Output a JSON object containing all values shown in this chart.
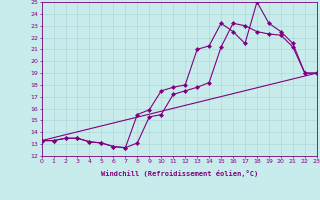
{
  "xlabel": "Windchill (Refroidissement éolien,°C)",
  "bg_color": "#c8ecec",
  "grid_color": "#b0d8d8",
  "line_color": "#800080",
  "xmin": 0,
  "xmax": 23,
  "ymin": 12,
  "ymax": 25,
  "line1_x": [
    0,
    1,
    2,
    3,
    4,
    5,
    6,
    7,
    8,
    9,
    10,
    11,
    12,
    13,
    14,
    15,
    16,
    17,
    18,
    19,
    20,
    21,
    22,
    23
  ],
  "line1_y": [
    13.3,
    13.3,
    13.5,
    13.5,
    13.2,
    13.1,
    12.8,
    12.7,
    15.5,
    15.9,
    17.5,
    17.8,
    18.0,
    21.0,
    21.3,
    23.2,
    22.5,
    21.5,
    25.0,
    23.2,
    22.5,
    21.5,
    19.0,
    19.0
  ],
  "line2_x": [
    0,
    1,
    2,
    3,
    4,
    5,
    6,
    7,
    8,
    9,
    10,
    11,
    12,
    13,
    14,
    15,
    16,
    17,
    18,
    19,
    20,
    21,
    22,
    23
  ],
  "line2_y": [
    13.3,
    13.3,
    13.5,
    13.5,
    13.2,
    13.1,
    12.8,
    12.7,
    13.1,
    15.3,
    15.5,
    17.2,
    17.5,
    17.8,
    18.2,
    21.2,
    23.2,
    23.0,
    22.5,
    22.3,
    22.2,
    21.2,
    19.0,
    19.0
  ],
  "line3_x": [
    0,
    23
  ],
  "line3_y": [
    13.3,
    19.0
  ]
}
